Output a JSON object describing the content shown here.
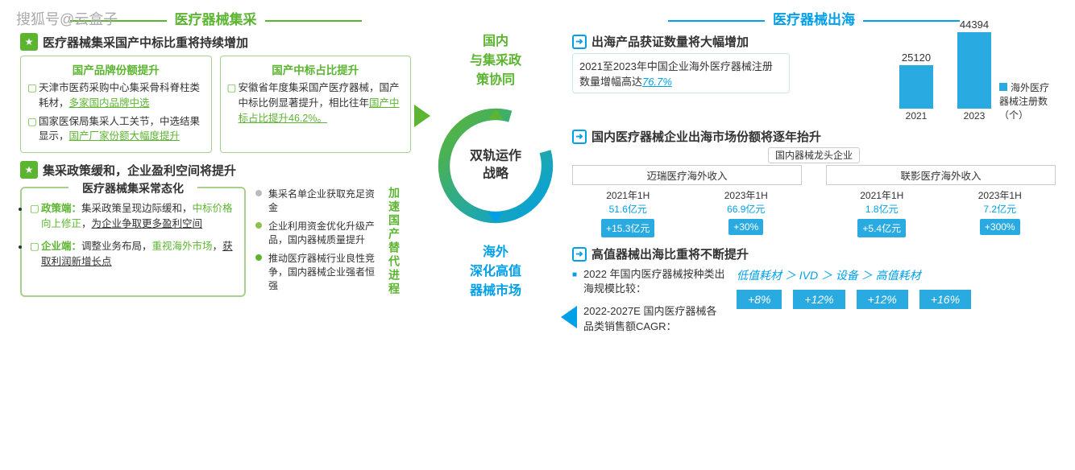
{
  "watermark": "搜狐号@云盒子",
  "left": {
    "title": "医疗器械集采",
    "h1": "医疗器械集采国产中标比重将持续增加",
    "box1": {
      "title": "国产品牌份额提升",
      "li1a": "天津市医药采购中心集采骨科脊柱类耗材，",
      "li1b": "多家国内品牌中选",
      "li2a": "国家医保局集采人工关节，中选结果显示，",
      "li2b": "国产厂家份额大幅度提升"
    },
    "box2": {
      "title": "国产中标占比提升",
      "li1a": "安徽省年度集采国产医疗器械，国产中标比例显著提升，相比往年",
      "li1b": "国产中标占比提升46.2%。"
    },
    "h2": "集采政策缓和，企业盈利空间将提升",
    "norm": {
      "title": "医疗器械集采常态化",
      "li1a": "政策端：",
      "li1b": "集采政策呈现边际缓和，",
      "li1c": "中标价格向上修正",
      "li1d": "，",
      "li1e": "为企业争取更多盈利空间",
      "li2a": "企业端：",
      "li2b": "调整业务布局，",
      "li2c": "重视海外市场",
      "li2d": "，",
      "li2e": "获取利润新增长点"
    },
    "timeline": {
      "t1": "集采名单企业获取充足资金",
      "t2": "企业利用资金优化升级产品，国内器械质量提升",
      "t3": "推动医疗器械行业良性竞争，国内器械企业强者恒强",
      "vlabel": "加速国产替代进程"
    }
  },
  "center": {
    "top": "国内\n与集采政\n策协同",
    "mid": "双轨运作\n战略",
    "bot": "海外\n深化高值\n器械市场"
  },
  "right": {
    "title": "医疗器械出海",
    "h1": "出海产品获证数量将大幅增加",
    "quote": "2021至2023年中国企业海外医疗器械注册数量增幅高达",
    "quote_pct": "76.7%",
    "chart": {
      "bars": [
        {
          "label": "2021",
          "value": 25120,
          "h": 54
        },
        {
          "label": "2023",
          "value": 44394,
          "h": 95
        }
      ],
      "legend": "海外医疗器械注册数（个）"
    },
    "h2": "国内医疗器械企业出海市场份额将逐年抬升",
    "comp_top": "国内器械龙头企业",
    "rev": [
      {
        "name": "迈瑞医疗海外收入",
        "y1": "2021年1H",
        "v1": "51.6亿元",
        "y2": "2023年1H",
        "v2": "66.9亿元",
        "t1": "+15.3亿元",
        "t2": "+30%"
      },
      {
        "name": "联影医疗海外收入",
        "y1": "2021年1H",
        "v1": "1.8亿元",
        "y2": "2023年1H",
        "v2": "7.2亿元",
        "t1": "+5.4亿元",
        "t2": "+300%"
      }
    ],
    "h3": "高值器械出海比重将不断提升",
    "cagr": {
      "li1": "2022 年国内医疗器械按种类出海规模比较：",
      "cmp": "低值耗材 ＞ IVD ＞ 设备 ＞ 高值耗材",
      "li2": "2022-2027E 国内医疗器械各品类销售额CAGR：",
      "tags": [
        "+8%",
        "+12%",
        "+12%",
        "+16%"
      ]
    }
  }
}
